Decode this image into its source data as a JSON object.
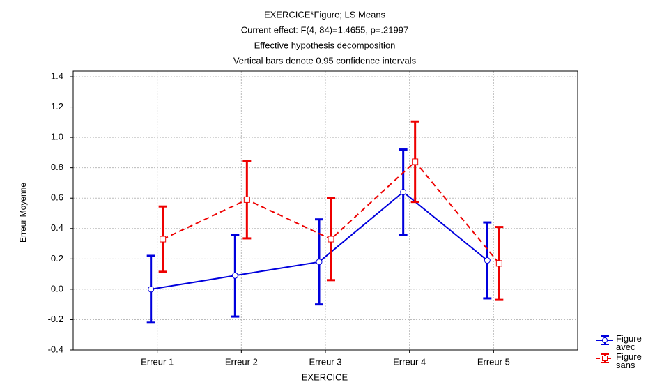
{
  "chart_data": {
    "type": "line",
    "title": [
      "EXERCICE*Figure; LS Means",
      "Current effect: F(4, 84)=1.4655, p=.21997",
      "Effective hypothesis decomposition",
      "Vertical bars denote 0.95 confidence intervals"
    ],
    "xlabel": "EXERCICE",
    "ylabel": "Erreur Moyenne",
    "categories": [
      "Erreur 1",
      "Erreur 2",
      "Erreur 3",
      "Erreur 4",
      "Erreur 5"
    ],
    "series": [
      {
        "name": "Figure avec",
        "color": "#0000dd",
        "dash": false,
        "marker": "circle",
        "values": [
          0.0,
          0.09,
          0.18,
          0.64,
          0.19
        ],
        "errors": [
          0.22,
          0.27,
          0.28,
          0.28,
          0.25
        ]
      },
      {
        "name": "Figure sans",
        "color": "#ee0000",
        "dash": true,
        "marker": "square",
        "values": [
          0.33,
          0.59,
          0.33,
          0.84,
          0.17
        ],
        "errors": [
          0.215,
          0.255,
          0.27,
          0.265,
          0.24
        ]
      }
    ],
    "ylim": [
      -0.4,
      1.4
    ],
    "yticks": [
      -0.4,
      -0.2,
      {
        "value": 0,
        "label": "0.0"
      },
      0.2,
      0.4,
      0.6,
      0.8,
      {
        "value": 1,
        "label": "1.0"
      },
      1.2,
      1.4
    ],
    "grid": true,
    "legend": "lower right"
  }
}
